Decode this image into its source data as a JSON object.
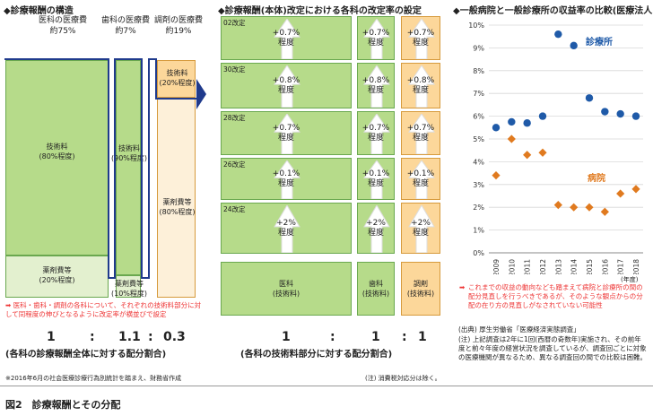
{
  "left": {
    "title": "◆診療報酬の構造",
    "h_ika": "医科の医療費",
    "h_ika_pct": "約75%",
    "h_shika": "歯科の医療費",
    "h_shika_pct": "約7%",
    "h_chozai": "調剤の医療費",
    "h_chozai_pct": "約19%",
    "ika_tech": "技術料",
    "ika_tech_sub": "(80%程度)",
    "ika_drug": "薬剤費等",
    "ika_drug_sub": "(20%程度)",
    "shika_tech": "技術料",
    "shika_tech_sub": "(90%程度)",
    "shika_drug": "薬剤費等",
    "shika_drug_sub": "(10%程度)",
    "chozai_tech": "技術料",
    "chozai_tech_sub": "(20%程度)",
    "chozai_drug": "薬剤費等",
    "chozai_drug_sub": "(80%程度)",
    "note_mark": "➡",
    "note": "医科・歯科・調剤の各科について、それぞれの技術料部分に対して同程度の伸びとなるように改定率が横並びで設定",
    "ratio": [
      "1",
      ":",
      "1.1",
      ":",
      "0.3"
    ],
    "ratio_caption": "(各科の診療報酬全体に対する配分割合)",
    "footnote": "※2016年6月の社会医療診療行為別統計を踏まえ、財務省作成"
  },
  "middle": {
    "title": "◆診療報酬(本体)改定における各科の改定率の設定",
    "rows": [
      {
        "label": "02改定",
        "ika": "+0.7%",
        "shika": "+0.7%",
        "chozai": "+0.7%"
      },
      {
        "label": "30改定",
        "ika": "+0.8%",
        "shika": "+0.8%",
        "chozai": "+0.8%"
      },
      {
        "label": "28改定",
        "ika": "+0.7%",
        "shika": "+0.7%",
        "chozai": "+0.7%"
      },
      {
        "label": "26改定",
        "ika": "+0.1%",
        "shika": "+0.1%",
        "chozai": "+0.1%"
      },
      {
        "label": "24改定",
        "ika": "+2%",
        "shika": "+2%",
        "chozai": "+2%"
      }
    ],
    "degree": "程度",
    "b_ika": "医科",
    "b_shika": "歯科",
    "b_chozai": "調剤",
    "b_sub": "(技術料)",
    "ratio": [
      "1",
      ":",
      "1",
      ":",
      "1"
    ],
    "ratio_caption": "(各科の技術料部分に対する配分割合)",
    "footnote": "(注) 消費税対応分は除く。"
  },
  "right": {
    "title": "◆一般病院と一般診療所の収益率の比較(医療法人)",
    "nendo": "(年度)",
    "note": "これまでの収益の動向なども踏まえて病院と診療所の間の配分見直しを行うべきであるが、そのような観点からの分配の在り方の見直しがなされていない可能性",
    "source": "(出典) 厚生労働省「医療経済実態調査」",
    "chu": "(注) 上記調査は2年に1回(西暦の奇数年)実施され、その前年度と前々年度の経営状況を調査しているが、調査回ごとに対象の医療機関が異なるため、異なる調査回の間での比較は困難。"
  },
  "figure_caption": "図2　診療報酬とその分配",
  "colors": {
    "clinic": "#1f5aa8",
    "hospital": "#e07a1f",
    "accent": "#1f7bc1",
    "green": "#b6db8a",
    "orange": "#fcd79a"
  },
  "chart_data": {
    "type": "scatter",
    "title": "一般病院と一般診療所の収益率の比較(医療法人)",
    "xlabel": "(年度)",
    "ylabel": "",
    "categories": [
      "2009",
      "2010",
      "2011",
      "2012",
      "2013",
      "2014",
      "2015",
      "2016",
      "2017",
      "2018"
    ],
    "ylim": [
      0,
      10
    ],
    "yticks": [
      "0%",
      "1%",
      "2%",
      "3%",
      "4%",
      "5%",
      "6%",
      "7%",
      "8%",
      "9%",
      "10%"
    ],
    "grid": true,
    "series": [
      {
        "name": "診療所",
        "color": "#1f5aa8",
        "values": [
          5.5,
          5.75,
          5.7,
          6.0,
          9.6,
          9.1,
          6.8,
          6.2,
          6.1,
          6.0
        ]
      },
      {
        "name": "病院",
        "color": "#e07a1f",
        "values": [
          3.4,
          5.0,
          4.3,
          4.4,
          2.1,
          2.0,
          2.0,
          1.8,
          2.6,
          2.8
        ]
      }
    ]
  }
}
